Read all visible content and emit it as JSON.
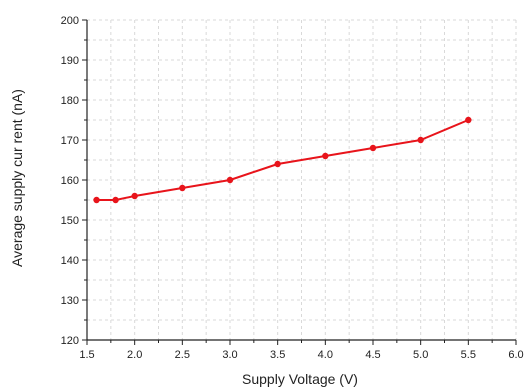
{
  "chart_data": {
    "type": "line",
    "xlabel": "Supply Voltage (V)",
    "ylabel": "Average supply cur rent (nA)",
    "xlim": [
      1.5,
      6.0
    ],
    "ylim": [
      120,
      200
    ],
    "xticks": [
      "1.5",
      "2.0",
      "2.5",
      "3.0",
      "3.5",
      "4.0",
      "4.5",
      "5.0",
      "5.5",
      "6.0"
    ],
    "yticks": [
      "120",
      "130",
      "140",
      "150",
      "160",
      "170",
      "180",
      "190",
      "200"
    ],
    "grid": true,
    "series": [
      {
        "color": "#e8141b",
        "x": [
          1.6,
          1.8,
          2.0,
          2.5,
          3.0,
          3.5,
          4.0,
          4.5,
          5.0,
          5.5
        ],
        "y": [
          155,
          155,
          156,
          158,
          160,
          164,
          166,
          168,
          170,
          175
        ]
      }
    ]
  }
}
